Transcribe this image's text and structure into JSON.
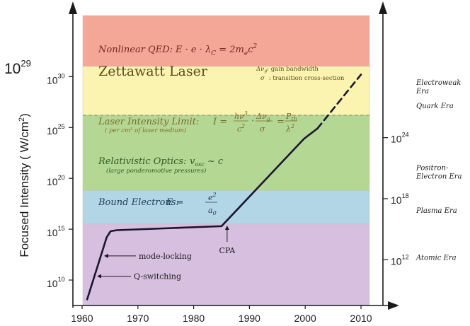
{
  "chart_data": {
    "type": "line",
    "xlabel": "",
    "ylabel": "Focused Intensity ( W/cm",
    "ylabel_sup": "2",
    "ylabel_close": ")",
    "xlim": [
      1960,
      2015
    ],
    "y_log_exp_range": [
      7.5,
      36.0
    ],
    "x_ticks": [
      "1960",
      "1970",
      "1980",
      "1990",
      "2000",
      "2010"
    ],
    "left_ticks": [
      {
        "base": "10",
        "exp": "10",
        "value_exp": 10
      },
      {
        "base": "10",
        "exp": "15",
        "value_exp": 15
      },
      {
        "base": "10",
        "exp": "20",
        "value_exp": 20
      },
      {
        "base": "10",
        "exp": "25",
        "value_exp": 25
      },
      {
        "base": "10",
        "exp": "30",
        "value_exp": 30
      }
    ],
    "right_ticks": [
      {
        "base": "10",
        "exp": "12",
        "value_exp": 12
      },
      {
        "base": "10",
        "exp": "18",
        "value_exp": 18
      },
      {
        "base": "10",
        "exp": "24",
        "value_exp": 24
      }
    ],
    "big_left_label": {
      "base": "10",
      "exp": "29",
      "value_exp": 29
    },
    "bands": [
      {
        "from_exp": 31,
        "to_exp": 36,
        "color": "#f4a797"
      },
      {
        "from_exp": 26.2,
        "to_exp": 31,
        "color": "#fbf4b0"
      },
      {
        "from_exp": 18.8,
        "to_exp": 26.2,
        "color": "#b4d894"
      },
      {
        "from_exp": 15.5,
        "to_exp": 18.8,
        "color": "#b2d6e6"
      },
      {
        "from_exp": 7.5,
        "to_exp": 15.5,
        "color": "#d7bfe0"
      }
    ],
    "band_labels": [
      {
        "text": "Nonlinear QED:",
        "formula": "E · e · λ",
        "formula_sub": "C",
        "formula_tail": " = 2m",
        "formula_sub2": "e",
        "formula_tail2": "c",
        "formula_sup": "2"
      },
      {
        "text": "Zettawatt Laser"
      },
      {
        "text": "Laser Intensity Limit:",
        "note": "( per cm² of laser medium)"
      },
      {
        "text": "Relativistic Optics:",
        "formula": "v",
        "formula_sub": "osc",
        "formula_tail": " ~ c",
        "note": "(large ponderomotive pressures)"
      },
      {
        "text": "Bound Electrons:",
        "formula": "E ="
      }
    ],
    "legend_notes": [
      {
        "symbol": "Δν",
        "symbol_sub": "g",
        "text": ": gain bandwidth"
      },
      {
        "symbol": "σ",
        "text": ": transition cross-section"
      }
    ],
    "formula_parts": {
      "lil_I": "I =",
      "lil_num1": "hν",
      "lil_num1_sup": "3",
      "lil_den1": "c",
      "lil_den1_sup": "2",
      "lil_dot": "·",
      "lil_num2": "Δν",
      "lil_num2_sub": "g",
      "lil_den2": "σ",
      "lil_eq": "=",
      "lil_num3": "P",
      "lil_num3_sub": "th",
      "lil_den3": "λ",
      "lil_den3_sup": "2",
      "be_num": "e",
      "be_num_sup": "2",
      "be_den": "a",
      "be_den_sub": "0"
    },
    "eras": [
      {
        "line1": "Electroweak",
        "line2": "Era",
        "value_exp": 29.2
      },
      {
        "line1": "Quark Era",
        "line2": "",
        "value_exp": 26.9
      },
      {
        "line1": "Positron-",
        "line2": "Electron Era",
        "value_exp": 20.8
      },
      {
        "line1": "Plasma Era",
        "line2": "",
        "value_exp": 16.6
      },
      {
        "line1": "Atomic Era",
        "line2": "",
        "value_exp": 12.0
      }
    ],
    "series": [
      {
        "style": "solid",
        "x": [
          1960.9,
          1964.4,
          1965.1,
          1966.2,
          1985.0,
          1999.8,
          2002.2
        ],
        "y_exp": [
          8.1,
          14.2,
          14.8,
          14.9,
          15.3,
          23.9,
          24.9
        ]
      },
      {
        "style": "dashed",
        "x": [
          2002.2,
          2010.0
        ],
        "y_exp": [
          24.9,
          30.2
        ]
      }
    ],
    "annotations": [
      {
        "text": "mode-locking",
        "x": 1964.6,
        "y_exp": 12.1
      },
      {
        "text": "Q-switching",
        "x": 1962.2,
        "y_exp": 10.1
      },
      {
        "text": "CPA",
        "x": 1986.0,
        "y_exp": 15.2
      }
    ]
  }
}
